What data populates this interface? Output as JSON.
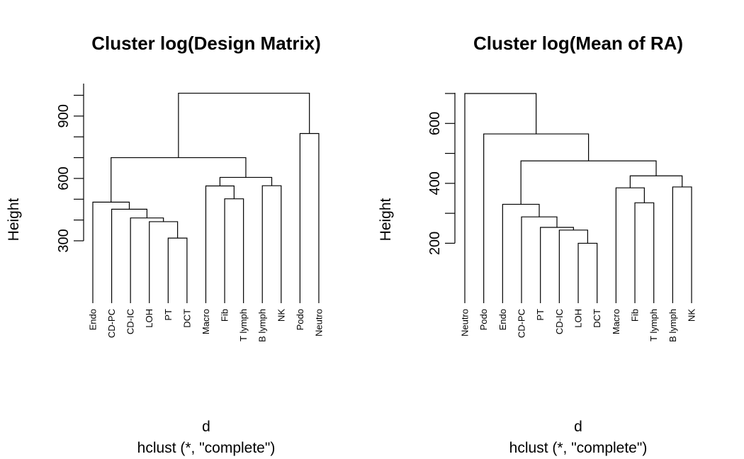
{
  "chart_data": [
    {
      "type": "dendrogram",
      "title": "Cluster log(Design Matrix)",
      "ylabel": "Height",
      "xlabel": "d",
      "sublabel": "hclust (*, \"complete\")",
      "yticks": [
        300,
        600,
        900
      ],
      "yrange": [
        0,
        1010
      ],
      "leaves": [
        "Endo",
        "CD-PC",
        "CD-IC",
        "LOH",
        "PT",
        "DCT",
        "Macro",
        "Fib",
        "T lymph",
        "B lymph",
        "NK",
        "Podo",
        "Neutro"
      ],
      "merges": [
        {
          "a": "PT",
          "b": "DCT",
          "height": 313
        },
        {
          "a": "LOH",
          "b": 1,
          "height": 392
        },
        {
          "a": "CD-IC",
          "b": 2,
          "height": 410
        },
        {
          "a": "CD-PC",
          "b": 3,
          "height": 452
        },
        {
          "a": "Endo",
          "b": 4,
          "height": 486
        },
        {
          "a": "Fib",
          "b": "T lymph",
          "height": 502
        },
        {
          "a": "Macro",
          "b": 6,
          "height": 564
        },
        {
          "a": "B lymph",
          "b": "NK",
          "height": 565
        },
        {
          "a": 7,
          "b": 8,
          "height": 605
        },
        {
          "a": 5,
          "b": 9,
          "height": 700
        },
        {
          "a": "Podo",
          "b": "Neutro",
          "height": 816
        },
        {
          "a": 10,
          "b": 11,
          "height": 1010
        }
      ]
    },
    {
      "type": "dendrogram",
      "title": "Cluster log(Mean of RA)",
      "ylabel": "Height",
      "xlabel": "d",
      "sublabel": "hclust (*, \"complete\")",
      "yticks": [
        200,
        400,
        600
      ],
      "yrange": [
        0,
        700
      ],
      "leaves": [
        "Neutro",
        "Podo",
        "Endo",
        "CD-PC",
        "PT",
        "CD-IC",
        "LOH",
        "DCT",
        "Macro",
        "Fib",
        "T lymph",
        "B lymph",
        "NK"
      ],
      "merges": [
        {
          "a": "LOH",
          "b": "DCT",
          "height": 200
        },
        {
          "a": "CD-IC",
          "b": 1,
          "height": 244
        },
        {
          "a": "PT",
          "b": 2,
          "height": 253
        },
        {
          "a": "CD-PC",
          "b": 3,
          "height": 288
        },
        {
          "a": "Endo",
          "b": 4,
          "height": 330
        },
        {
          "a": "Fib",
          "b": "T lymph",
          "height": 335
        },
        {
          "a": "Macro",
          "b": 6,
          "height": 385
        },
        {
          "a": "B lymph",
          "b": "NK",
          "height": 388
        },
        {
          "a": 7,
          "b": 8,
          "height": 425
        },
        {
          "a": 5,
          "b": 9,
          "height": 475
        },
        {
          "a": "Podo",
          "b": 10,
          "height": 565
        },
        {
          "a": "Neutro",
          "b": 11,
          "height": 700
        }
      ]
    }
  ]
}
